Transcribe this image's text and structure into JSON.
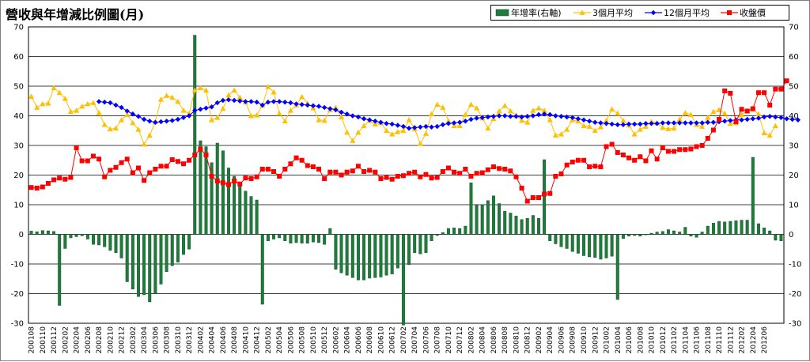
{
  "chart_data": {
    "type": "bar+line",
    "title": "營收與年增減比例圖(月)",
    "xlabel": "",
    "ylabel": "",
    "grid": true,
    "legend_position": "top-right",
    "left_axis": {
      "min": -30,
      "max": 70,
      "step": 10,
      "ticks": [
        "70",
        "60",
        "50",
        "40",
        "30",
        "20",
        "10",
        "0",
        "-10",
        "-20",
        "-30"
      ]
    },
    "right_axis": {
      "min": -30,
      "max": 70,
      "step": 10,
      "ticks": [
        "70",
        "60",
        "50",
        "40",
        "30",
        "20",
        "10",
        "0",
        "-10",
        "-20",
        "-30"
      ]
    },
    "x_tick_labels": [
      "200108",
      "200110",
      "200112",
      "200202",
      "200204",
      "200206",
      "200208",
      "200210",
      "200212",
      "200302",
      "200304",
      "200306",
      "200308",
      "200310",
      "200312",
      "200402",
      "200404",
      "200406",
      "200408",
      "200410",
      "200412",
      "200502",
      "200504",
      "200506",
      "200508",
      "200510",
      "200512",
      "200602",
      "200604",
      "200606",
      "200608",
      "200610",
      "200612",
      "200702",
      "200704",
      "200706",
      "200708",
      "200710",
      "200712",
      "200802",
      "200804",
      "200806",
      "200808",
      "200810",
      "200812",
      "200902",
      "200904",
      "200906",
      "200908",
      "200910",
      "200912",
      "201002",
      "201004",
      "201006",
      "201008",
      "201010",
      "201012",
      "201102",
      "201104",
      "201106",
      "201108",
      "201110",
      "201112",
      "201202",
      "201204",
      "201206"
    ],
    "series": [
      {
        "name": "年增率(右軸)",
        "kind": "bar",
        "axis": "right",
        "color": "#1f7a3c",
        "values": [
          1.1,
          0.9,
          1.3,
          1.2,
          1.0,
          -24.0,
          -4.8,
          -1.2,
          -0.8,
          -0.5,
          -1.6,
          -3.4,
          -3.6,
          -4.2,
          -5.4,
          -6.2,
          -8.0,
          -16.0,
          -18.5,
          -21.0,
          -20.4,
          -22.8,
          -20.0,
          -16.8,
          -12.6,
          -10.6,
          -9.4,
          -6.8,
          -5.0,
          67.2,
          31.6,
          29.6,
          24.2,
          30.8,
          28.2,
          22.4,
          19.6,
          17.2,
          14.6,
          12.8,
          11.6,
          -23.6,
          -2.2,
          -1.6,
          -1.2,
          -2.2,
          -3.0,
          -2.8,
          -3.0,
          -3.0,
          -2.6,
          -2.8,
          -3.4,
          2.0,
          -11.8,
          -13.0,
          -13.8,
          -14.6,
          -15.4,
          -15.4,
          -14.8,
          -14.6,
          -14.4,
          -13.8,
          -13.4,
          -11.4,
          -30.6,
          -10.2,
          -6.2,
          -6.6,
          -6.2,
          -2.2,
          -0.4,
          0.6,
          2.0,
          2.2,
          2.0,
          2.8,
          17.4,
          9.8,
          10.0,
          11.4,
          13.0,
          10.4,
          7.8,
          7.2,
          6.2,
          5.0,
          5.4,
          6.4,
          5.4,
          25.2,
          -2.2,
          -3.2,
          -4.2,
          -4.8,
          -5.8,
          -6.4,
          -7.2,
          -7.6,
          -7.8,
          -8.4,
          -8.0,
          -7.4,
          -22.0,
          -1.4,
          -0.6,
          -0.4,
          -0.6,
          -0.2,
          0.4,
          0.8,
          1.0,
          1.6,
          1.2,
          0.8,
          2.4,
          -0.6,
          -1.0,
          0.8,
          2.8,
          3.8,
          4.4,
          4.2,
          4.4,
          4.6,
          4.8,
          4.8,
          26.0,
          3.6,
          2.2,
          1.2,
          -2.0,
          -2.2
        ]
      },
      {
        "name": "3個月平均",
        "kind": "line",
        "axis": "left",
        "color": "#ffc000",
        "marker": "triangle",
        "values": [
          46.5,
          42.8,
          44.0,
          44.2,
          49.4,
          47.8,
          45.8,
          41.4,
          41.8,
          43.2,
          44.0,
          44.4,
          41.0,
          37.0,
          35.5,
          35.8,
          38.6,
          40.4,
          37.6,
          35.4,
          30.4,
          33.4,
          38.0,
          45.5,
          46.8,
          46.2,
          44.8,
          41.8,
          40.8,
          48.6,
          49.4,
          48.6,
          38.6,
          39.4,
          42.4,
          47.0,
          48.6,
          46.2,
          44.6,
          40.0,
          40.2,
          43.5,
          49.8,
          48.0,
          40.8,
          38.2,
          41.8,
          43.6,
          46.4,
          44.2,
          42.6,
          38.6,
          38.4,
          42.0,
          42.8,
          39.6,
          34.4,
          31.6,
          34.4,
          36.6,
          38.4,
          37.2,
          37.6,
          35.0,
          33.8,
          34.6,
          35.0,
          38.6,
          35.6,
          30.6,
          34.0,
          40.6,
          43.8,
          42.8,
          38.2,
          36.6,
          36.6,
          40.4,
          43.8,
          42.6,
          39.2,
          35.8,
          39.0,
          41.6,
          43.4,
          41.6,
          40.2,
          38.4,
          37.8,
          41.8,
          42.6,
          41.8,
          38.6,
          33.4,
          33.8,
          35.4,
          38.6,
          38.2,
          36.6,
          36.4,
          35.0,
          36.2,
          38.4,
          42.2,
          40.8,
          38.4,
          36.8,
          33.8,
          35.4,
          36.4,
          38.0,
          37.6,
          36.0,
          35.6,
          35.8,
          38.8,
          41.0,
          40.4,
          37.0,
          36.4,
          39.4,
          41.4,
          42.0,
          40.8,
          37.4,
          37.6,
          40.4,
          41.6,
          42.2,
          40.6,
          34.2,
          33.4,
          36.6
        ]
      },
      {
        "name": "12個月平均",
        "kind": "line",
        "axis": "left",
        "color": "#0000ff",
        "marker": "diamond",
        "values": [
          null,
          null,
          null,
          null,
          null,
          null,
          null,
          null,
          null,
          null,
          null,
          null,
          44.8,
          44.6,
          44.4,
          43.6,
          42.8,
          41.6,
          40.6,
          39.8,
          38.8,
          38.2,
          37.8,
          38.0,
          38.2,
          38.4,
          38.8,
          39.4,
          40.0,
          41.8,
          42.2,
          42.6,
          43.0,
          44.4,
          45.2,
          45.4,
          45.2,
          45.0,
          44.8,
          44.8,
          44.6,
          43.6,
          44.6,
          44.8,
          44.8,
          44.6,
          44.4,
          44.0,
          43.8,
          43.6,
          43.4,
          43.2,
          42.8,
          42.4,
          42.0,
          41.2,
          40.6,
          40.0,
          39.6,
          39.0,
          38.6,
          38.2,
          37.8,
          37.4,
          37.2,
          36.8,
          36.4,
          35.8,
          36.0,
          36.2,
          36.4,
          36.2,
          36.4,
          37.0,
          37.4,
          37.6,
          37.8,
          38.2,
          38.8,
          39.2,
          39.4,
          39.6,
          39.8,
          40.0,
          40.0,
          39.8,
          39.8,
          39.6,
          39.8,
          40.0,
          40.4,
          40.6,
          40.4,
          40.0,
          39.8,
          39.6,
          39.4,
          39.0,
          38.6,
          38.2,
          37.8,
          37.6,
          37.4,
          37.2,
          37.0,
          37.0,
          37.2,
          37.2,
          37.2,
          37.4,
          37.4,
          37.4,
          37.6,
          37.6,
          37.6,
          37.6,
          37.6,
          37.6,
          37.6,
          37.6,
          37.8,
          37.8,
          38.0,
          38.2,
          38.4,
          38.6,
          38.6,
          38.8,
          39.0,
          39.2,
          39.6,
          39.8,
          39.6,
          39.4,
          39.0,
          38.8,
          38.6
        ]
      },
      {
        "name": "收盤價",
        "kind": "line",
        "axis": "left",
        "color": "#ff0000",
        "marker": "square",
        "values": [
          15.8,
          15.6,
          16.0,
          17.2,
          18.4,
          19.0,
          18.6,
          19.2,
          29.2,
          24.8,
          24.8,
          26.4,
          25.4,
          19.4,
          21.6,
          22.6,
          24.2,
          25.4,
          20.8,
          22.4,
          18.2,
          20.8,
          22.0,
          23.0,
          23.0,
          25.2,
          24.6,
          23.8,
          25.0,
          26.8,
          28.8,
          26.8,
          19.6,
          18.0,
          17.4,
          16.8,
          18.0,
          17.0,
          19.0,
          18.8,
          19.4,
          22.0,
          22.0,
          21.2,
          19.6,
          22.0,
          23.8,
          25.8,
          25.0,
          23.2,
          22.8,
          22.0,
          18.8,
          21.0,
          21.0,
          20.0,
          21.0,
          21.4,
          23.0,
          21.2,
          21.6,
          21.0,
          18.8,
          19.2,
          18.6,
          19.6,
          19.8,
          20.6,
          21.0,
          19.4,
          20.2,
          19.0,
          19.2,
          21.2,
          22.4,
          21.0,
          20.6,
          22.0,
          19.6,
          20.6,
          20.8,
          21.8,
          22.8,
          22.2,
          22.0,
          21.4,
          19.4,
          15.6,
          11.2,
          12.4,
          12.4,
          13.6,
          13.8,
          19.6,
          20.4,
          23.4,
          24.4,
          25.0,
          25.0,
          22.8,
          23.0,
          22.8,
          29.6,
          30.4,
          27.6,
          26.8,
          25.8,
          25.0,
          26.2,
          24.8,
          28.2,
          25.4,
          29.2,
          28.0,
          28.0,
          28.6,
          28.6,
          28.8,
          29.6,
          30.0,
          32.4,
          35.2,
          38.8,
          48.4,
          47.6,
          38.0,
          42.2,
          41.6,
          42.4,
          47.8,
          47.8,
          43.6,
          49.0,
          49.0,
          51.8
        ]
      }
    ]
  }
}
